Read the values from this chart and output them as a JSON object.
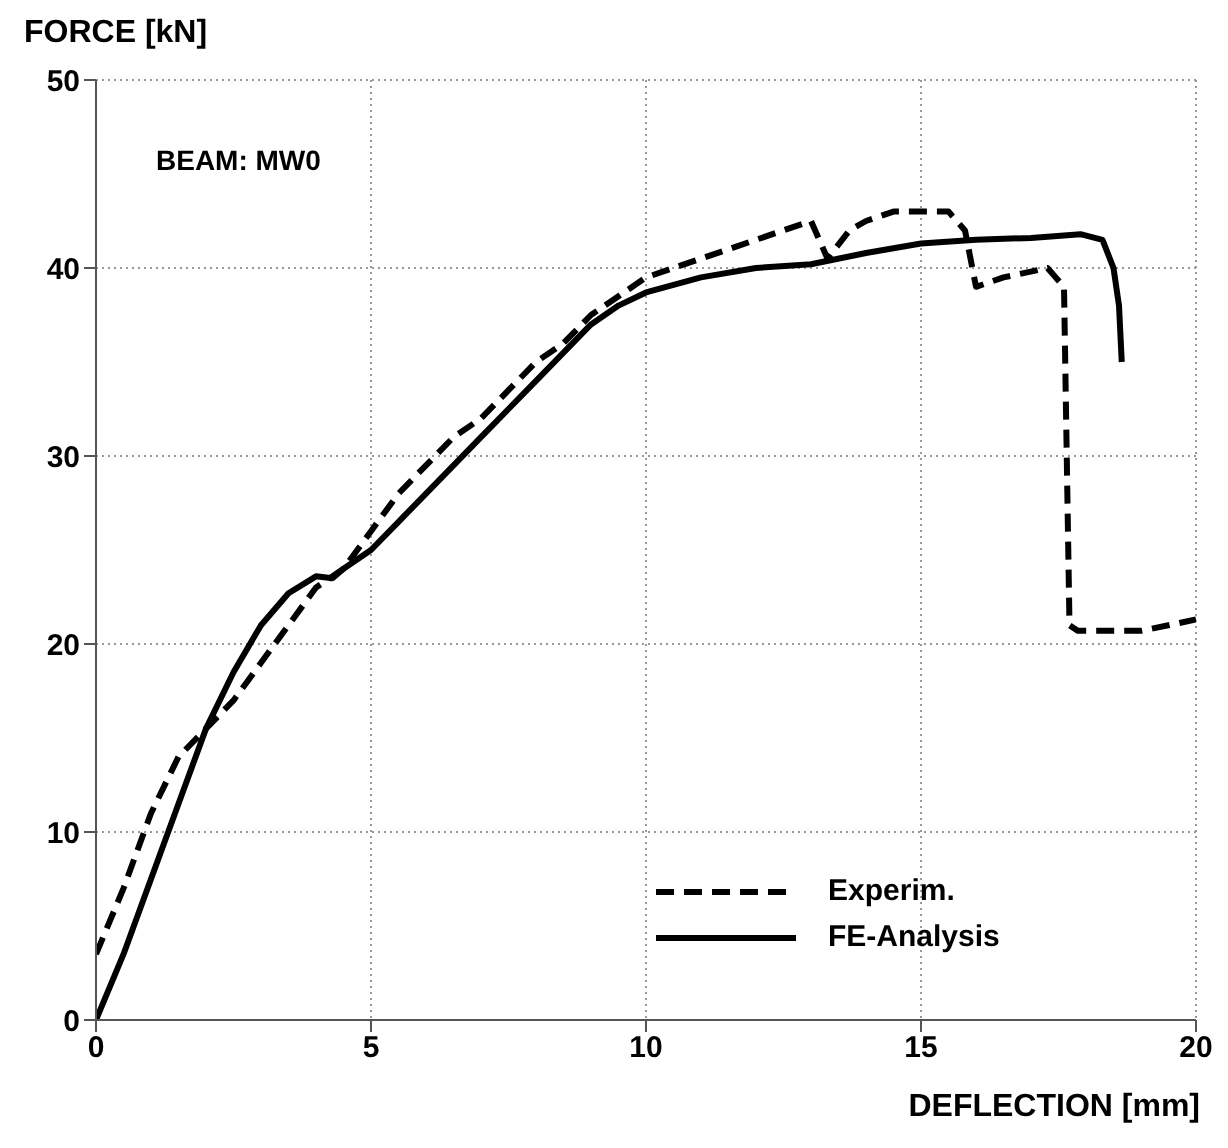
{
  "chart_data": {
    "type": "line",
    "xlabel": "DEFLECTION [mm]",
    "ylabel": "FORCE [kN]",
    "annotations": [
      "BEAM: MW0"
    ],
    "xlim": [
      0,
      20
    ],
    "ylim": [
      0,
      50
    ],
    "xticks": [
      0,
      5,
      10,
      15,
      20
    ],
    "yticks": [
      0,
      10,
      20,
      30,
      40,
      50
    ],
    "grid": true,
    "legend": "bottom right",
    "marker": "none",
    "series": [
      {
        "name": "Experim.",
        "color": "#000000",
        "line_style": "dashed",
        "x": [
          0,
          0.5,
          1,
          1.5,
          2,
          2.5,
          3,
          3.5,
          4,
          4.5,
          5,
          5.5,
          6,
          6.5,
          7,
          7.5,
          8,
          8.5,
          9,
          9.5,
          10,
          11,
          12,
          13,
          13.3,
          13.7,
          14,
          14.5,
          15,
          15.5,
          15.8,
          16,
          16.5,
          17.3,
          17.6,
          17.7,
          17.85,
          18,
          19,
          20
        ],
        "values": [
          3.5,
          7,
          11,
          14,
          15.5,
          17,
          19,
          21,
          23,
          24,
          26,
          28,
          29.5,
          31,
          32,
          33.5,
          35,
          36,
          37.5,
          38.5,
          39.5,
          40.5,
          41.5,
          42.5,
          40.5,
          42,
          42.5,
          43,
          43,
          43,
          42,
          39,
          39.5,
          40,
          39,
          21,
          20.7,
          20.7,
          20.7,
          21.3
        ]
      },
      {
        "name": "FE-Analysis",
        "color": "#000000",
        "line_style": "solid",
        "x": [
          0,
          0.5,
          1,
          1.5,
          2,
          2.5,
          3,
          3.5,
          4,
          4.3,
          4.5,
          5,
          5.5,
          6,
          6.5,
          7,
          7.5,
          8,
          8.5,
          9,
          9.5,
          10,
          11,
          12,
          13,
          14,
          15,
          16,
          17,
          17.9,
          18.3,
          18.5,
          18.6,
          18.65
        ],
        "values": [
          0,
          3.5,
          7.5,
          11.5,
          15.5,
          18.5,
          21,
          22.7,
          23.6,
          23.5,
          24,
          25,
          26.5,
          28,
          29.5,
          31,
          32.5,
          34,
          35.5,
          37,
          38,
          38.7,
          39.5,
          40,
          40.2,
          40.8,
          41.3,
          41.5,
          41.6,
          41.8,
          41.5,
          40,
          38,
          35
        ]
      }
    ]
  }
}
